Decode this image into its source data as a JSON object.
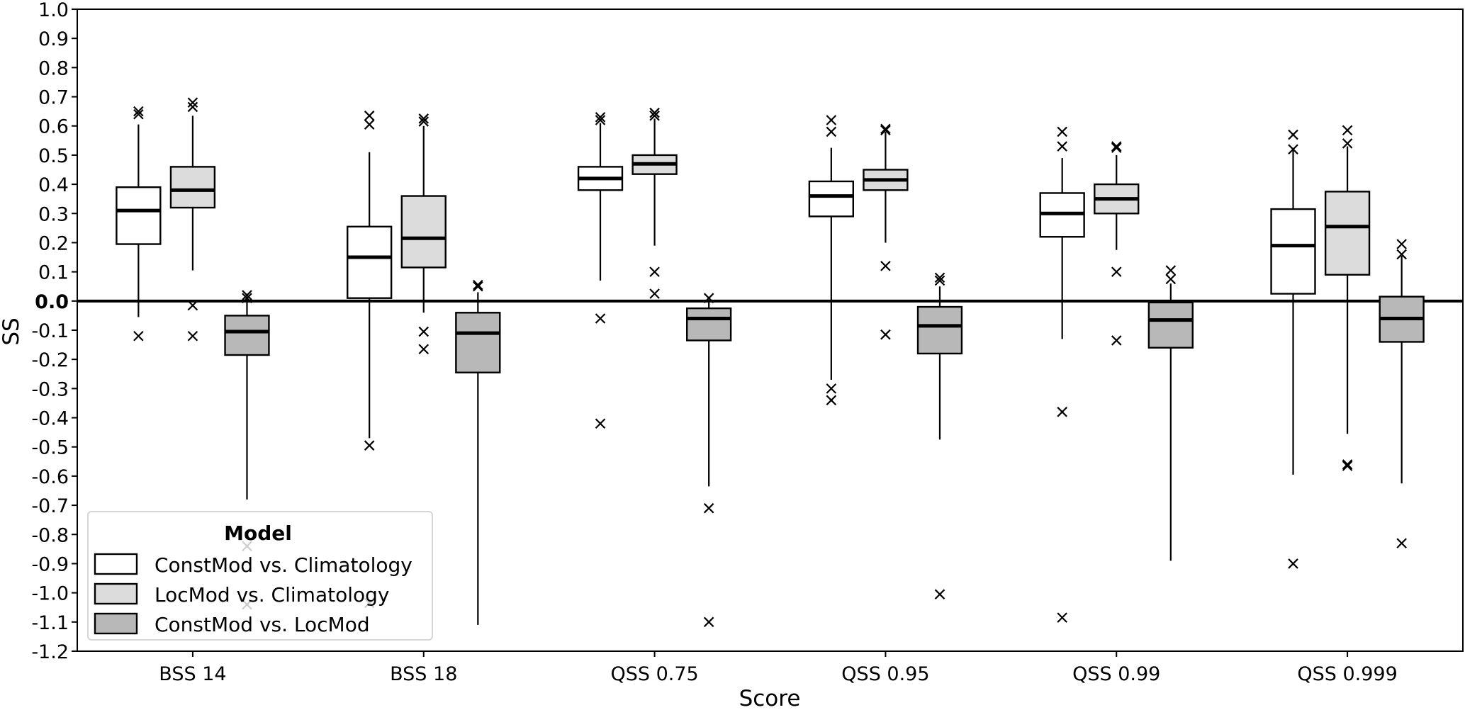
{
  "chart_data": {
    "type": "boxplot",
    "xlabel": "Score",
    "ylabel": "SS",
    "ylim": [
      -1.2,
      1.0
    ],
    "xlim": [
      -0.5,
      5.5
    ],
    "grid": false,
    "yticks": [
      "1.0",
      "0.9",
      "0.8",
      "0.7",
      "0.6",
      "0.5",
      "0.4",
      "0.3",
      "0.2",
      "0.1",
      "0.0",
      "-0.1",
      "-0.2",
      "-0.3",
      "-0.4",
      "-0.5",
      "-0.6",
      "-0.7",
      "-0.8",
      "-0.9",
      "-1.0",
      "-1.1",
      "-1.2"
    ],
    "ytick_values": [
      1.0,
      0.9,
      0.8,
      0.7,
      0.6,
      0.5,
      0.4,
      0.3,
      0.2,
      0.1,
      0.0,
      -0.1,
      -0.2,
      -0.3,
      -0.4,
      -0.5,
      -0.6,
      -0.7,
      -0.8,
      -0.9,
      -1.0,
      -1.1,
      -1.2
    ],
    "reference_line": 0.0,
    "categories": [
      "BSS 14",
      "BSS 18",
      "QSS 0.75",
      "QSS 0.95",
      "QSS 0.99",
      "QSS 0.999"
    ],
    "legend": {
      "title": "Model",
      "placement": "lower-left"
    },
    "series": [
      {
        "name": "ConstMod vs. Climatology",
        "color": "#ffffff",
        "boxes": [
          {
            "whislo": -0.055,
            "q1": 0.195,
            "med": 0.31,
            "q3": 0.39,
            "whishi": 0.605,
            "fliers": [
              0.65,
              0.64,
              -0.12
            ]
          },
          {
            "whislo": -0.47,
            "q1": 0.01,
            "med": 0.15,
            "q3": 0.255,
            "whishi": 0.51,
            "fliers": [
              0.635,
              0.605,
              -0.495,
              -1.035
            ]
          },
          {
            "whislo": 0.07,
            "q1": 0.38,
            "med": 0.42,
            "q3": 0.46,
            "whishi": 0.61,
            "fliers": [
              0.63,
              0.62,
              -0.06,
              -0.42
            ]
          },
          {
            "whislo": -0.27,
            "q1": 0.29,
            "med": 0.36,
            "q3": 0.41,
            "whishi": 0.525,
            "fliers": [
              0.62,
              0.58,
              -0.3,
              -0.34
            ]
          },
          {
            "whislo": -0.13,
            "q1": 0.22,
            "med": 0.3,
            "q3": 0.37,
            "whishi": 0.49,
            "fliers": [
              0.58,
              0.53,
              -0.38,
              -1.085
            ]
          },
          {
            "whislo": -0.595,
            "q1": 0.025,
            "med": 0.19,
            "q3": 0.315,
            "whishi": 0.52,
            "fliers": [
              0.57,
              0.52,
              -0.9
            ]
          }
        ]
      },
      {
        "name": "LocMod vs. Climatology",
        "color": "#dcdcdc",
        "boxes": [
          {
            "whislo": 0.105,
            "q1": 0.32,
            "med": 0.38,
            "q3": 0.46,
            "whishi": 0.635,
            "fliers": [
              0.68,
              0.665,
              -0.015,
              -0.12
            ]
          },
          {
            "whislo": -0.04,
            "q1": 0.115,
            "med": 0.215,
            "q3": 0.36,
            "whishi": 0.6,
            "fliers": [
              0.625,
              0.615,
              -0.105,
              -0.165
            ]
          },
          {
            "whislo": 0.19,
            "q1": 0.435,
            "med": 0.47,
            "q3": 0.5,
            "whishi": 0.625,
            "fliers": [
              0.645,
              0.635,
              0.1,
              0.025
            ]
          },
          {
            "whislo": 0.2,
            "q1": 0.38,
            "med": 0.415,
            "q3": 0.45,
            "whishi": 0.58,
            "fliers": [
              0.59,
              0.585,
              0.12,
              -0.115
            ]
          },
          {
            "whislo": 0.175,
            "q1": 0.3,
            "med": 0.35,
            "q3": 0.4,
            "whishi": 0.5,
            "fliers": [
              0.53,
              0.525,
              0.1,
              -0.135
            ]
          },
          {
            "whislo": -0.455,
            "q1": 0.09,
            "med": 0.255,
            "q3": 0.375,
            "whishi": 0.53,
            "fliers": [
              0.585,
              0.54,
              -0.56,
              -0.565
            ]
          }
        ]
      },
      {
        "name": "ConstMod vs. LocMod",
        "color": "#b8b8b8",
        "boxes": [
          {
            "whislo": -0.68,
            "q1": -0.185,
            "med": -0.105,
            "q3": -0.05,
            "whishi": 0.005,
            "fliers": [
              0.02,
              0.01,
              -0.84,
              -1.04
            ]
          },
          {
            "whislo": -1.11,
            "q1": -0.245,
            "med": -0.11,
            "q3": -0.04,
            "whishi": 0.03,
            "fliers": [
              0.055,
              0.05
            ]
          },
          {
            "whislo": -0.635,
            "q1": -0.135,
            "med": -0.06,
            "q3": -0.025,
            "whishi": 0.0,
            "fliers": [
              0.01,
              -0.71,
              -1.1
            ]
          },
          {
            "whislo": -0.475,
            "q1": -0.18,
            "med": -0.085,
            "q3": -0.02,
            "whishi": 0.05,
            "fliers": [
              0.08,
              0.07,
              -1.005
            ]
          },
          {
            "whislo": -0.89,
            "q1": -0.16,
            "med": -0.065,
            "q3": -0.005,
            "whishi": 0.06,
            "fliers": [
              0.105,
              0.075
            ]
          },
          {
            "whislo": -0.625,
            "q1": -0.14,
            "med": -0.06,
            "q3": 0.015,
            "whishi": 0.155,
            "fliers": [
              0.195,
              0.16,
              -0.83
            ]
          }
        ]
      }
    ]
  }
}
